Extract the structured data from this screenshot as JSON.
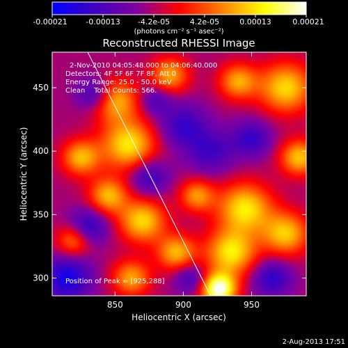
{
  "chart_data": {
    "type": "heatmap",
    "title": "Reconstructed RHESSI Image",
    "xlabel": "Heliocentric X (arcsec)",
    "ylabel": "Heliocentric Y (arcsec)",
    "xlim": [
      804,
      990
    ],
    "ylim": [
      286,
      478
    ],
    "x_ticks": [
      850,
      900,
      950
    ],
    "y_ticks": [
      300,
      350,
      400,
      450
    ],
    "colorbar": {
      "range": [
        -0.00021,
        0.00021
      ],
      "tick_labels": [
        "-0.00021",
        "-0.00013",
        "-4.2e-05",
        "4.2e-05",
        "0.00013",
        "0.00021"
      ],
      "unit_label": "(photons cm⁻² s⁻¹ asec⁻²)",
      "colors": [
        "#0000ff",
        "#4000c0",
        "#8000a0",
        "#ff0000",
        "#ff8000",
        "#ffff00",
        "#ffffff"
      ]
    },
    "annotations": {
      "time": "2-Nov-2010 04:05:48.000 to 04:06:40.000",
      "detectors": "Detectors: 4F 5F 6F 7F 8F, Att 0",
      "energy": "Energy Range: 25.0 - 50.0 keV",
      "clean": "Clean    Total Counts: 566.",
      "peak": "Position of Peak = [925,288]"
    },
    "peak_position": [
      925,
      288
    ],
    "limb_line": [
      [
        830,
        478
      ],
      [
        920,
        286
      ]
    ],
    "hot_regions": [
      {
        "x": 926,
        "y": 291,
        "sigma": 9,
        "intensity": 0.00021
      },
      {
        "x": 935,
        "y": 320,
        "sigma": 13,
        "intensity": 0.00013
      },
      {
        "x": 945,
        "y": 355,
        "sigma": 14,
        "intensity": 0.00013
      },
      {
        "x": 975,
        "y": 335,
        "sigma": 12,
        "intensity": 0.00011
      },
      {
        "x": 985,
        "y": 395,
        "sigma": 10,
        "intensity": 0.00011
      },
      {
        "x": 975,
        "y": 450,
        "sigma": 14,
        "intensity": 0.00012
      },
      {
        "x": 940,
        "y": 455,
        "sigma": 10,
        "intensity": 9e-05
      },
      {
        "x": 860,
        "y": 405,
        "sigma": 14,
        "intensity": 0.00013
      },
      {
        "x": 825,
        "y": 395,
        "sigma": 10,
        "intensity": 0.0001
      },
      {
        "x": 850,
        "y": 440,
        "sigma": 12,
        "intensity": 0.0001
      },
      {
        "x": 890,
        "y": 460,
        "sigma": 10,
        "intensity": 9e-05
      },
      {
        "x": 870,
        "y": 345,
        "sigma": 12,
        "intensity": 0.00012
      },
      {
        "x": 845,
        "y": 365,
        "sigma": 10,
        "intensity": 0.0001
      },
      {
        "x": 895,
        "y": 320,
        "sigma": 10,
        "intensity": 0.0001
      },
      {
        "x": 862,
        "y": 300,
        "sigma": 10,
        "intensity": 9e-05
      },
      {
        "x": 910,
        "y": 365,
        "sigma": 9,
        "intensity": 8e-05
      },
      {
        "x": 820,
        "y": 330,
        "sigma": 9,
        "intensity": 8e-05
      }
    ],
    "cold_regions": [
      {
        "x": 830,
        "y": 340,
        "sigma": 10,
        "intensity": -0.00017
      },
      {
        "x": 815,
        "y": 300,
        "sigma": 12,
        "intensity": -0.00019
      },
      {
        "x": 835,
        "y": 445,
        "sigma": 9,
        "intensity": -0.00016
      },
      {
        "x": 875,
        "y": 380,
        "sigma": 10,
        "intensity": -0.00015
      },
      {
        "x": 900,
        "y": 420,
        "sigma": 12,
        "intensity": -0.00015
      },
      {
        "x": 920,
        "y": 400,
        "sigma": 12,
        "intensity": -0.00014
      },
      {
        "x": 950,
        "y": 410,
        "sigma": 10,
        "intensity": -0.00015
      },
      {
        "x": 965,
        "y": 300,
        "sigma": 10,
        "intensity": -0.00016
      },
      {
        "x": 905,
        "y": 300,
        "sigma": 8,
        "intensity": -0.00014
      },
      {
        "x": 880,
        "y": 440,
        "sigma": 8,
        "intensity": -0.00013
      }
    ],
    "background": -5e-05
  },
  "footer": {
    "date_stamp": "2-Aug-2013 17:51"
  }
}
